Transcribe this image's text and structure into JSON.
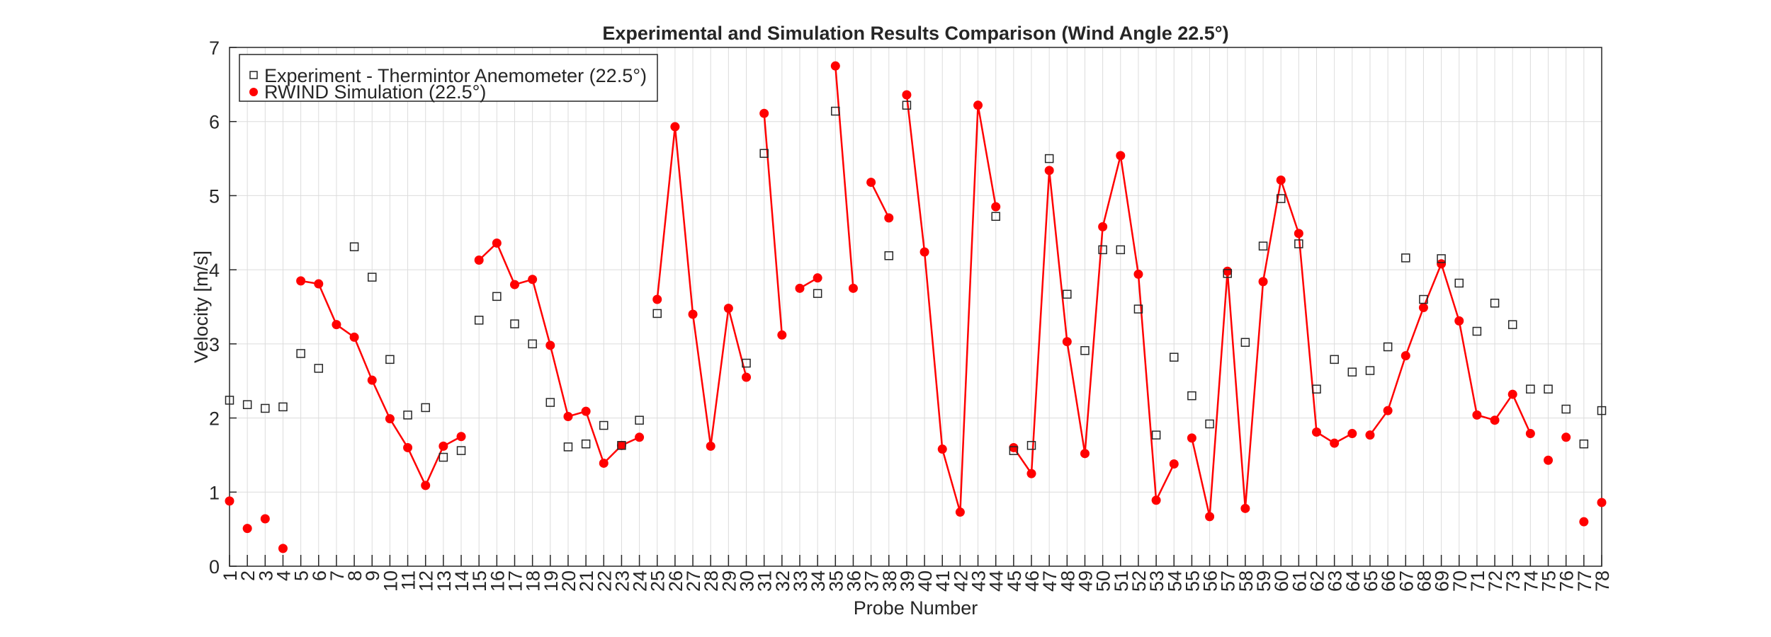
{
  "chart_data": {
    "type": "line",
    "title": "Experimental and Simulation Results Comparison (Wind Angle 22.5°)",
    "xlabel": "Probe Number",
    "ylabel": "Velocity [m/s]",
    "xlim": [
      1,
      78
    ],
    "ylim": [
      0,
      7
    ],
    "yticks": [
      0,
      1,
      2,
      3,
      4,
      5,
      6,
      7
    ],
    "grid": true,
    "legend_position": "top-left",
    "x": [
      1,
      2,
      3,
      4,
      5,
      6,
      7,
      8,
      9,
      10,
      11,
      12,
      13,
      14,
      15,
      16,
      17,
      18,
      19,
      20,
      21,
      22,
      23,
      24,
      25,
      26,
      27,
      28,
      29,
      30,
      31,
      32,
      33,
      34,
      35,
      36,
      37,
      38,
      39,
      40,
      41,
      42,
      43,
      44,
      45,
      46,
      47,
      48,
      49,
      50,
      51,
      52,
      53,
      54,
      55,
      56,
      57,
      58,
      59,
      60,
      61,
      62,
      63,
      64,
      65,
      66,
      67,
      68,
      69,
      70,
      71,
      72,
      73,
      74,
      75,
      76,
      77,
      78
    ],
    "series": [
      {
        "name": "Experiment - Thermintor Anemometer (22.5°)",
        "marker": "square",
        "color": "#262626",
        "values": [
          2.24,
          2.18,
          2.13,
          2.15,
          2.87,
          2.67,
          null,
          4.31,
          3.9,
          2.79,
          2.04,
          2.14,
          1.47,
          1.56,
          3.32,
          3.64,
          3.27,
          3.0,
          2.21,
          1.61,
          1.65,
          1.9,
          1.63,
          1.97,
          3.41,
          null,
          null,
          null,
          null,
          2.74,
          5.57,
          null,
          null,
          3.68,
          6.14,
          null,
          null,
          4.19,
          6.22,
          null,
          null,
          null,
          null,
          4.72,
          1.56,
          1.63,
          5.5,
          3.67,
          2.91,
          4.27,
          4.27,
          3.47,
          1.77,
          2.82,
          2.3,
          1.92,
          3.95,
          3.02,
          4.32,
          4.96,
          4.35,
          2.39,
          2.79,
          2.62,
          2.64,
          2.96,
          4.16,
          3.6,
          4.15,
          3.82,
          3.17,
          3.55,
          3.26,
          2.39,
          2.39,
          2.12,
          1.65,
          2.1
        ]
      },
      {
        "name": "RWIND Simulation (22.5°)",
        "marker": "circle",
        "color": "#ff0000",
        "values": [
          0.88,
          0.51,
          0.64,
          0.24,
          3.85,
          3.81,
          3.26,
          3.09,
          2.51,
          1.99,
          1.6,
          1.09,
          1.62,
          1.75,
          4.13,
          4.36,
          3.8,
          3.87,
          2.98,
          2.02,
          2.09,
          1.39,
          1.63,
          1.74,
          3.6,
          5.93,
          3.4,
          1.62,
          3.48,
          2.55,
          6.11,
          3.12,
          3.75,
          3.89,
          6.75,
          3.75,
          5.18,
          4.7,
          6.36,
          4.24,
          1.58,
          0.73,
          6.22,
          4.85,
          1.6,
          1.25,
          5.34,
          3.03,
          1.52,
          4.58,
          5.54,
          3.94,
          0.89,
          1.38,
          1.73,
          0.67,
          3.98,
          0.78,
          3.84,
          5.21,
          4.49,
          1.81,
          1.66,
          1.79,
          1.77,
          2.1,
          2.84,
          3.49,
          4.08,
          3.31,
          2.04,
          1.97,
          2.32,
          1.79,
          1.43,
          1.74,
          0.6,
          0.86
        ],
        "connected_ranges": [
          [
            5,
            14
          ],
          [
            15,
            24
          ],
          [
            25,
            30
          ],
          [
            31,
            32
          ],
          [
            33,
            34
          ],
          [
            35,
            36
          ],
          [
            37,
            38
          ],
          [
            39,
            44
          ],
          [
            45,
            54
          ],
          [
            55,
            64
          ],
          [
            65,
            74
          ]
        ]
      }
    ]
  }
}
